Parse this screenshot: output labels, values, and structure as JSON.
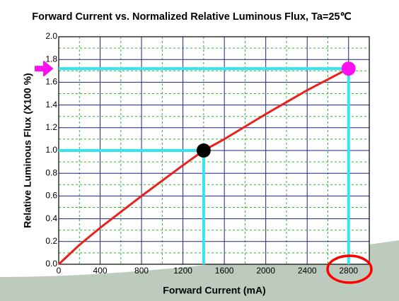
{
  "chart_data": {
    "type": "line",
    "title": "Forward Current vs. Normalized Relative Luminous Flux, Ta=25℃",
    "x_label": "Forward Current (mA)",
    "y_label": "Relative Luminous Flux (X100 %)",
    "x": [
      0,
      200,
      400,
      800,
      1200,
      1400,
      1600,
      2000,
      2400,
      2800
    ],
    "series": [
      {
        "color": "#e8211c",
        "values": [
          0,
          0.17,
          0.32,
          0.6,
          0.87,
          1.0,
          1.1,
          1.32,
          1.53,
          1.72
        ]
      }
    ],
    "xlim": [
      0,
      3000
    ],
    "ylim": [
      0,
      2.0
    ],
    "xticks": [
      0,
      400,
      800,
      1200,
      1600,
      2000,
      2400,
      2800
    ],
    "yticks": [
      {
        "value": 0,
        "label": "0.0"
      },
      0.2,
      0.4,
      0.6,
      0.8,
      {
        "value": 1,
        "label": "1.0"
      },
      1.2,
      1.4,
      1.6,
      1.8,
      {
        "value": 2,
        "label": "2.0"
      }
    ],
    "minor_xticks": [
      200,
      600,
      1000,
      1400,
      1800,
      2200,
      2600
    ],
    "minor_yticks": [
      0.1,
      0.3,
      0.5,
      0.7,
      0.9,
      1.1,
      1.3,
      1.5,
      1.7,
      1.9
    ],
    "grid": true,
    "grid_color": "#1a237e",
    "minor_grid_color": "#2db52d",
    "markers": [
      {
        "x": 1400,
        "y": 1.0,
        "color": "#000000"
      },
      {
        "x": 2800,
        "y": 1.72,
        "color": "#ff10f0"
      }
    ],
    "guide_color": "#33e5f0"
  }
}
